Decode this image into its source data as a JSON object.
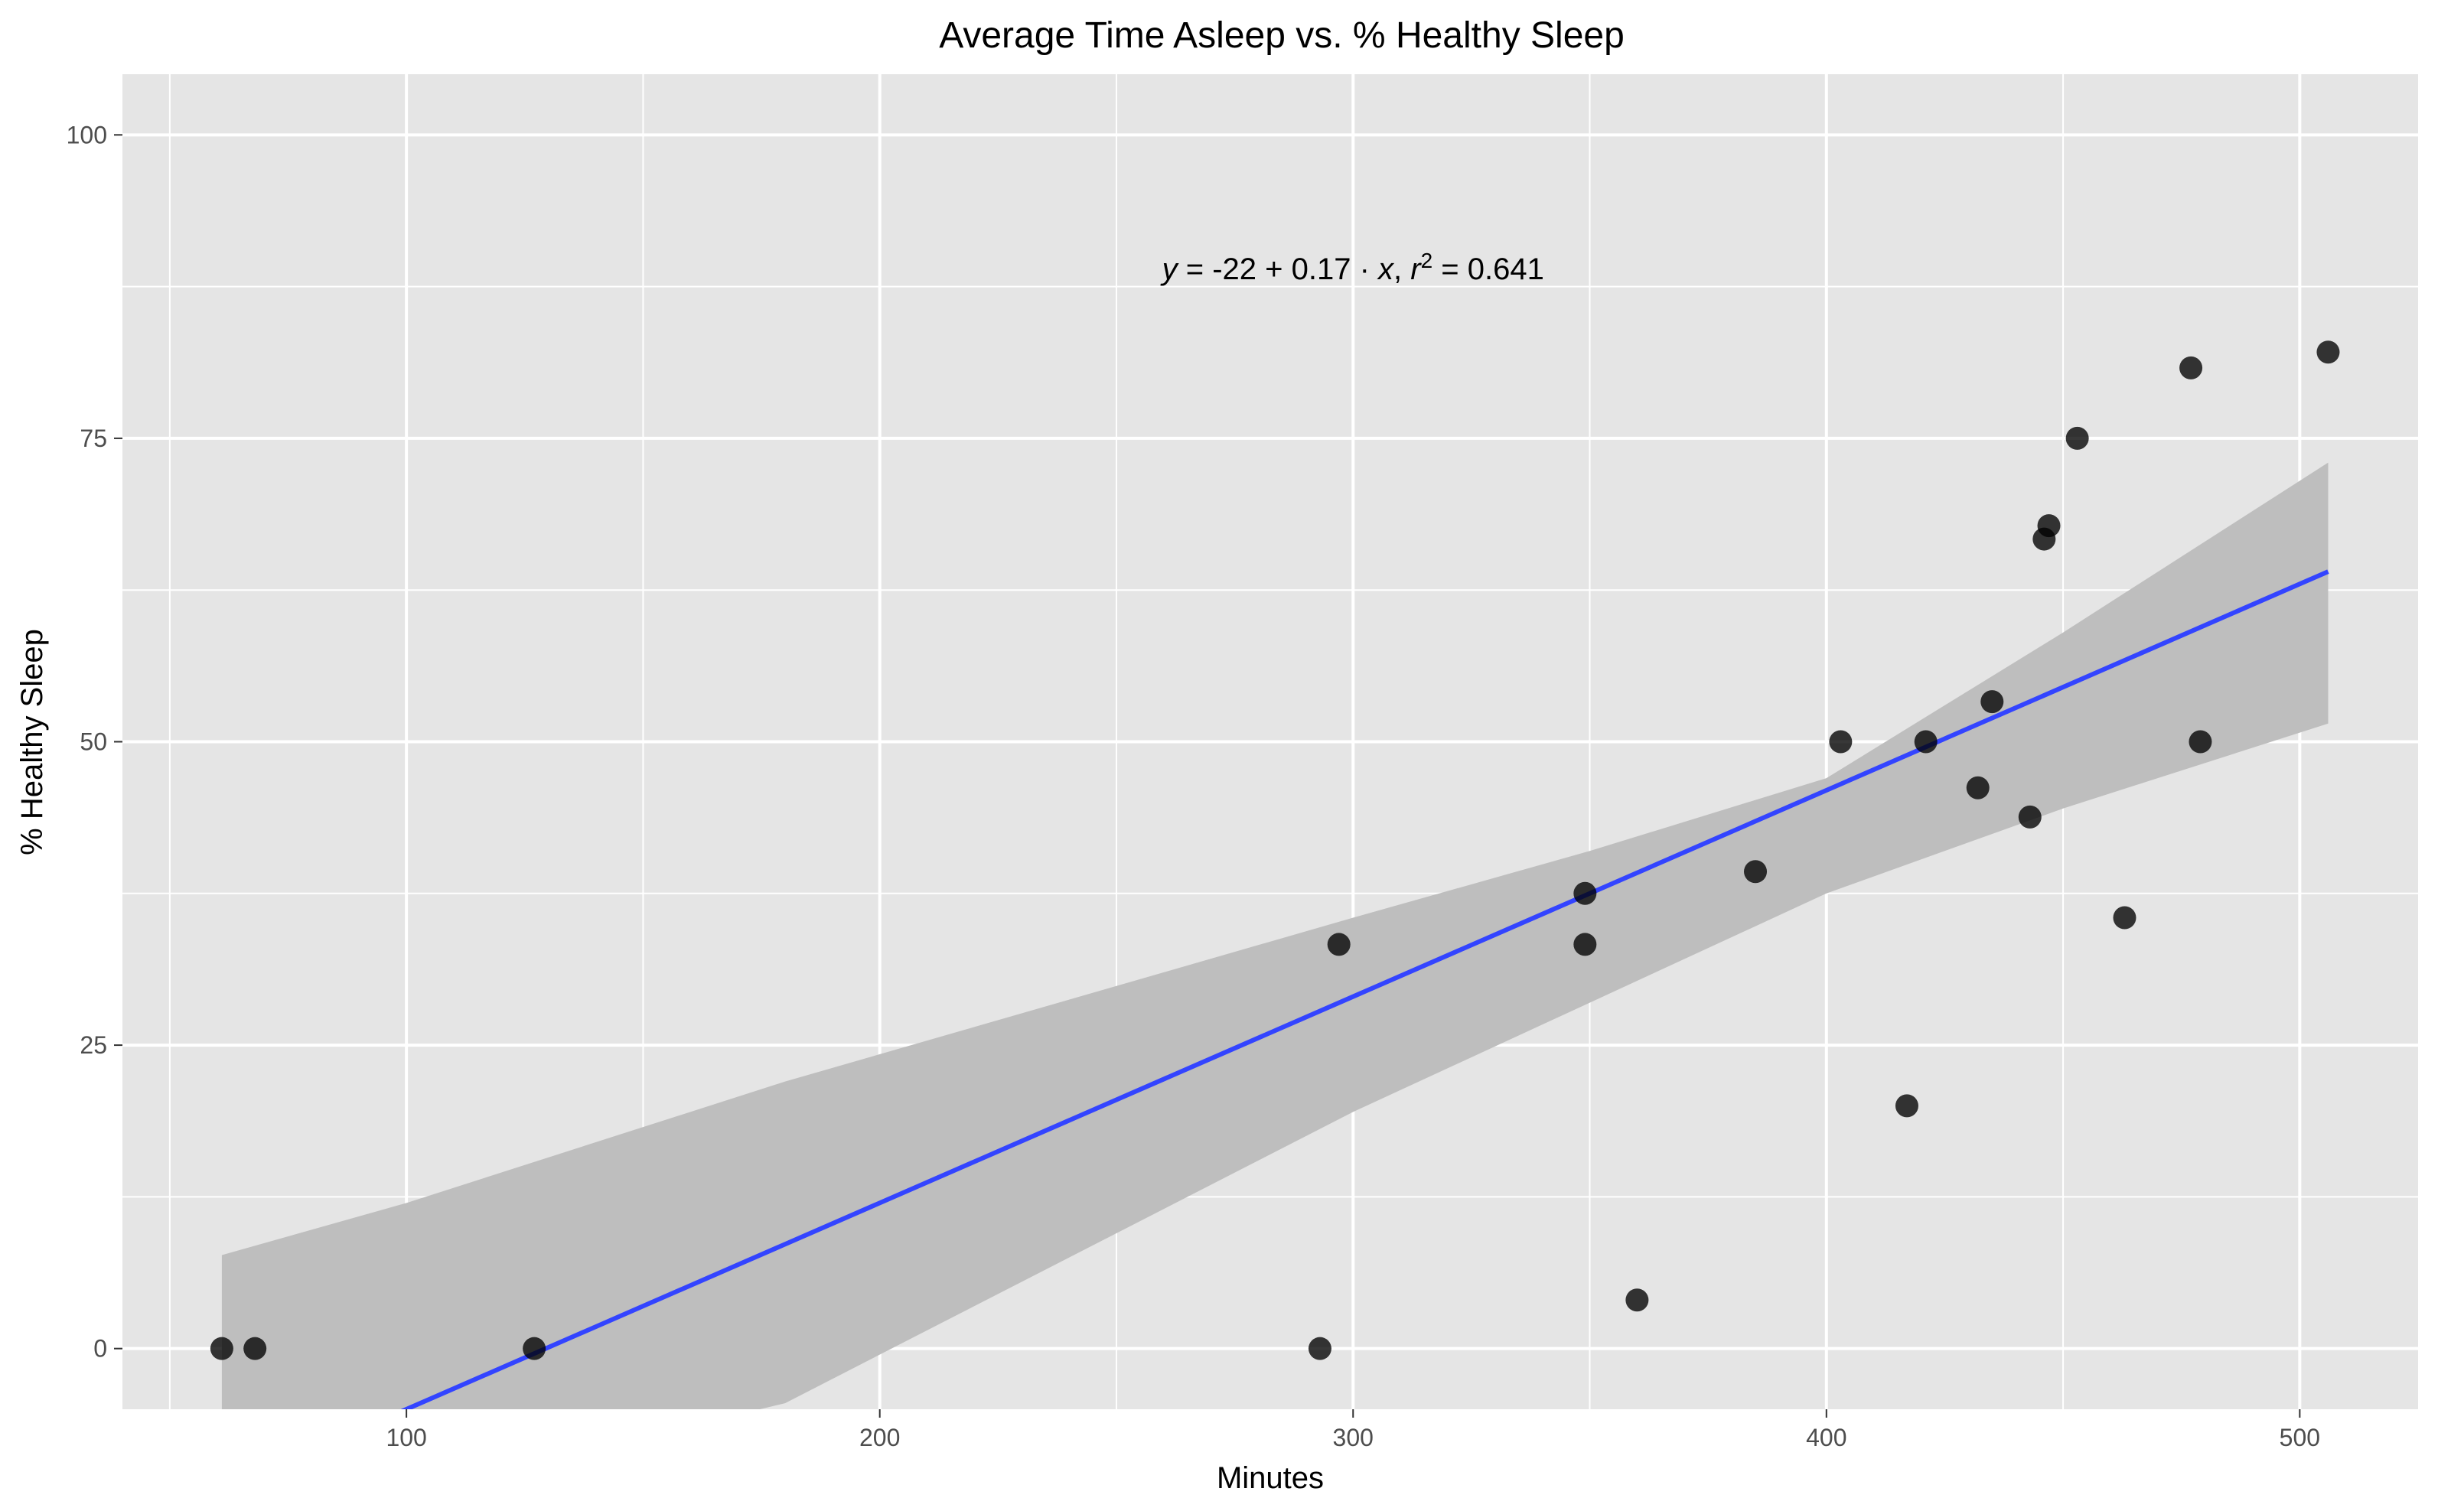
{
  "chart_data": {
    "type": "scatter",
    "title": "Average Time Asleep vs. % Healthy Sleep",
    "xlabel": "Minutes",
    "ylabel": "% Healthy Sleep",
    "xlim": [
      40,
      525
    ],
    "ylim": [
      -5,
      105
    ],
    "x_ticks": [
      100,
      200,
      300,
      400,
      500
    ],
    "y_ticks": [
      0,
      25,
      50,
      75,
      100
    ],
    "x_tick_labels": [
      "100",
      "200",
      "300",
      "400",
      "500"
    ],
    "y_tick_labels": [
      "0",
      "25",
      "50",
      "75",
      "100"
    ],
    "grid": true,
    "legend": "none",
    "points": [
      {
        "x": 61,
        "y": 0
      },
      {
        "x": 68,
        "y": 0
      },
      {
        "x": 127,
        "y": 0
      },
      {
        "x": 293,
        "y": 0
      },
      {
        "x": 297,
        "y": 33.3
      },
      {
        "x": 349,
        "y": 37.5
      },
      {
        "x": 349,
        "y": 33.3
      },
      {
        "x": 360,
        "y": 4
      },
      {
        "x": 385,
        "y": 39.3
      },
      {
        "x": 403,
        "y": 50
      },
      {
        "x": 417,
        "y": 20
      },
      {
        "x": 421,
        "y": 50
      },
      {
        "x": 432,
        "y": 46.2
      },
      {
        "x": 435,
        "y": 53.3
      },
      {
        "x": 443,
        "y": 43.8
      },
      {
        "x": 446,
        "y": 66.7
      },
      {
        "x": 447,
        "y": 67.8
      },
      {
        "x": 453,
        "y": 75
      },
      {
        "x": 463,
        "y": 35.5
      },
      {
        "x": 477,
        "y": 80.8
      },
      {
        "x": 479,
        "y": 50
      },
      {
        "x": 506,
        "y": 82.1
      }
    ],
    "regression": {
      "intercept": -22,
      "slope": 0.17,
      "x_range": [
        61,
        506
      ],
      "r2": 0.641
    },
    "confidence_band": [
      {
        "x": 61,
        "lower": -15,
        "upper": 7.7
      },
      {
        "x": 100,
        "lower": -12,
        "upper": 12
      },
      {
        "x": 180,
        "lower": -4.5,
        "upper": 22
      },
      {
        "x": 300,
        "lower": 19.5,
        "upper": 35.5
      },
      {
        "x": 350,
        "lower": 28.5,
        "upper": 41
      },
      {
        "x": 400,
        "lower": 37.5,
        "upper": 47
      },
      {
        "x": 450,
        "lower": 44.5,
        "upper": 59
      },
      {
        "x": 506,
        "lower": 51.5,
        "upper": 73
      }
    ],
    "annotation": {
      "equation_lhs": "y",
      "equation_rhs": " = -22 + 0.17 · ",
      "equation_var": "x",
      "r_sep": ",  ",
      "r_sym": "r",
      "r_exp": "2",
      "r_value": " = 0.641",
      "x": 300,
      "y": 89
    },
    "colors": {
      "panel": "#e5e5e5",
      "grid": "#ffffff",
      "band": "#bebebe",
      "line": "#3344ff",
      "point": "#000000"
    }
  }
}
